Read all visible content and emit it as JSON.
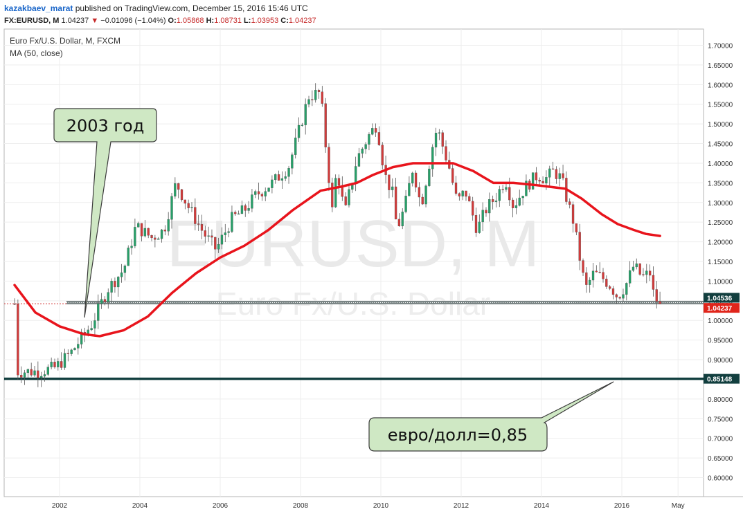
{
  "header": {
    "user": "kazakbaev_marat",
    "published": "published on TradingView.com, December 15, 2016 15:46 UTC",
    "symbol": "FX:EURUSD, M",
    "last": "1.04237",
    "change": "−0.01096 (−1.04%)",
    "o_label": "O:",
    "o": "1.05868",
    "h_label": "H:",
    "h": "1.08731",
    "l_label": "L:",
    "l": "1.03953",
    "c_label": "C:",
    "c": "1.04237"
  },
  "legend": {
    "title": "Euro Fx/U.S. Dollar, M, FXCM",
    "indicator": "MA (50, close)"
  },
  "watermark": {
    "main": "EURUSD, M",
    "sub": "Euro Fx/U.S. Dollar"
  },
  "callouts": [
    {
      "text": "2003 год"
    },
    {
      "text": "евро/долл=0,85"
    }
  ],
  "colors": {
    "up": "#27a069",
    "down": "#d23b3b",
    "ma": "#e8141c",
    "level": "#123f3f",
    "callout_fill": "#cfe8c4",
    "callout_stroke": "#3a3a3a",
    "last_price_bg": "#e0251b",
    "level_label_bg": "#123f3f"
  },
  "chart_data": {
    "type": "candlestick",
    "symbol": "EURUSD",
    "timeframe": "M",
    "y_ticks": [
      "0.60000",
      "0.65000",
      "0.70000",
      "0.75000",
      "0.80000",
      "0.85000",
      "0.90000",
      "0.95000",
      "1.00000",
      "1.05000",
      "1.10000",
      "1.15000",
      "1.20000",
      "1.25000",
      "1.30000",
      "1.35000",
      "1.40000",
      "1.45000",
      "1.50000",
      "1.55000",
      "1.60000",
      "1.65000",
      "1.70000"
    ],
    "x_ticks": [
      "2002",
      "2004",
      "2006",
      "2008",
      "2010",
      "2012",
      "2014",
      "2016",
      "May"
    ],
    "price_labels": [
      {
        "value": "1.04536",
        "style": "level"
      },
      {
        "value": "1.04237",
        "style": "last"
      },
      {
        "value": "0.85148",
        "style": "level"
      }
    ],
    "horizontal_levels": [
      1.04536,
      0.85148
    ],
    "series": [
      {
        "name": "EURUSD",
        "close_points": [
          [
            2000.9,
            0.87
          ],
          [
            2001.5,
            0.87
          ],
          [
            2001.9,
            0.88
          ],
          [
            2002.3,
            0.92
          ],
          [
            2002.8,
            0.99
          ],
          [
            2003.2,
            1.08
          ],
          [
            2003.6,
            1.13
          ],
          [
            2003.9,
            1.24
          ],
          [
            2004.3,
            1.21
          ],
          [
            2004.6,
            1.23
          ],
          [
            2004.9,
            1.35
          ],
          [
            2005.2,
            1.29
          ],
          [
            2005.6,
            1.22
          ],
          [
            2005.9,
            1.18
          ],
          [
            2006.3,
            1.26
          ],
          [
            2006.6,
            1.28
          ],
          [
            2006.9,
            1.32
          ],
          [
            2007.3,
            1.35
          ],
          [
            2007.7,
            1.39
          ],
          [
            2007.9,
            1.46
          ],
          [
            2008.2,
            1.57
          ],
          [
            2008.5,
            1.58
          ],
          [
            2008.6,
            1.47
          ],
          [
            2008.8,
            1.27
          ],
          [
            2008.9,
            1.39
          ],
          [
            2009.1,
            1.27
          ],
          [
            2009.4,
            1.41
          ],
          [
            2009.7,
            1.47
          ],
          [
            2009.9,
            1.5
          ],
          [
            2010.1,
            1.37
          ],
          [
            2010.3,
            1.32
          ],
          [
            2010.4,
            1.23
          ],
          [
            2010.6,
            1.29
          ],
          [
            2010.8,
            1.39
          ],
          [
            2011.0,
            1.29
          ],
          [
            2011.3,
            1.45
          ],
          [
            2011.4,
            1.49
          ],
          [
            2011.7,
            1.39
          ],
          [
            2011.9,
            1.3
          ],
          [
            2012.1,
            1.33
          ],
          [
            2012.4,
            1.23
          ],
          [
            2012.6,
            1.28
          ],
          [
            2012.9,
            1.32
          ],
          [
            2013.1,
            1.36
          ],
          [
            2013.3,
            1.29
          ],
          [
            2013.6,
            1.34
          ],
          [
            2013.9,
            1.37
          ],
          [
            2014.1,
            1.36
          ],
          [
            2014.3,
            1.38
          ],
          [
            2014.5,
            1.36
          ],
          [
            2014.6,
            1.32
          ],
          [
            2014.8,
            1.25
          ],
          [
            2015.0,
            1.13
          ],
          [
            2015.1,
            1.08
          ],
          [
            2015.3,
            1.12
          ],
          [
            2015.5,
            1.11
          ],
          [
            2015.7,
            1.09
          ],
          [
            2015.9,
            1.06
          ],
          [
            2016.1,
            1.09
          ],
          [
            2016.3,
            1.14
          ],
          [
            2016.5,
            1.11
          ],
          [
            2016.7,
            1.12
          ],
          [
            2016.8,
            1.06
          ],
          [
            2016.95,
            1.04237
          ]
        ]
      },
      {
        "name": "MA (50, close)",
        "points": [
          [
            2000.88,
            1.09
          ],
          [
            2001.4,
            1.02
          ],
          [
            2002.0,
            0.985
          ],
          [
            2002.6,
            0.965
          ],
          [
            2003.0,
            0.96
          ],
          [
            2003.6,
            0.975
          ],
          [
            2004.2,
            1.01
          ],
          [
            2004.8,
            1.07
          ],
          [
            2005.4,
            1.12
          ],
          [
            2006.0,
            1.16
          ],
          [
            2006.6,
            1.19
          ],
          [
            2007.2,
            1.23
          ],
          [
            2007.8,
            1.28
          ],
          [
            2008.5,
            1.33
          ],
          [
            2009.0,
            1.34
          ],
          [
            2009.4,
            1.35
          ],
          [
            2009.8,
            1.37
          ],
          [
            2010.3,
            1.39
          ],
          [
            2010.8,
            1.4
          ],
          [
            2011.2,
            1.4
          ],
          [
            2011.8,
            1.4
          ],
          [
            2012.3,
            1.38
          ],
          [
            2012.8,
            1.35
          ],
          [
            2013.3,
            1.35
          ],
          [
            2013.8,
            1.345
          ],
          [
            2014.2,
            1.34
          ],
          [
            2014.6,
            1.335
          ],
          [
            2015.0,
            1.31
          ],
          [
            2015.5,
            1.27
          ],
          [
            2015.9,
            1.245
          ],
          [
            2016.3,
            1.23
          ],
          [
            2016.6,
            1.22
          ],
          [
            2016.95,
            1.215
          ]
        ]
      }
    ]
  }
}
